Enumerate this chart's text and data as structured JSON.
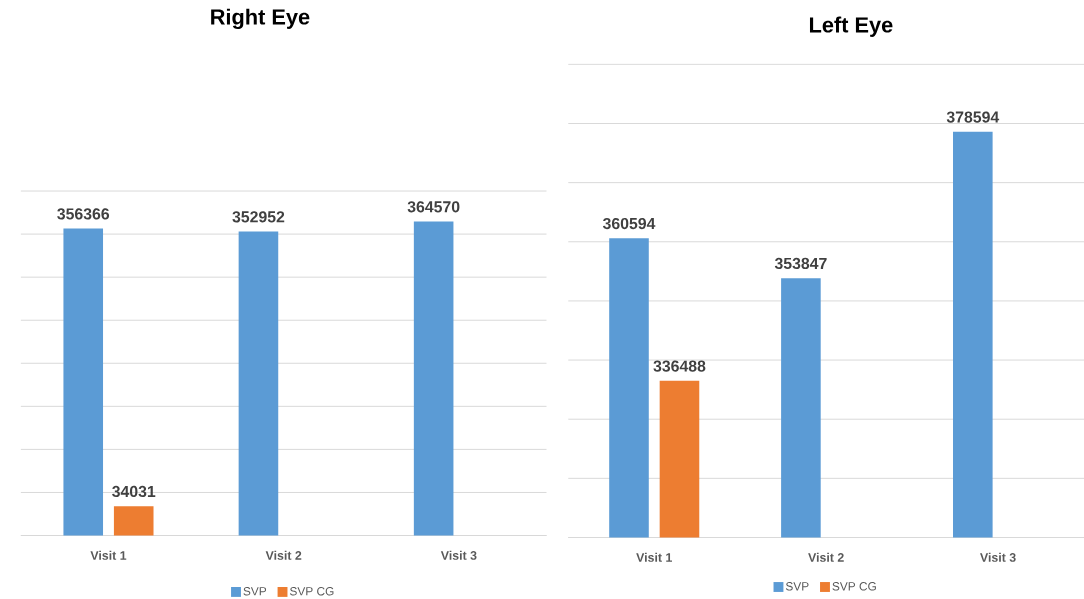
{
  "chart_data": [
    {
      "type": "bar",
      "title": "Right Eye",
      "categories": [
        "Visit 1",
        "Visit 2",
        "Visit 3"
      ],
      "series": [
        {
          "name": "SVP",
          "color": "#5b9bd5",
          "values": [
            356366,
            352952,
            364570
          ]
        },
        {
          "name": "SVP CG",
          "color": "#ed7d31",
          "values": [
            34031,
            null,
            null
          ]
        }
      ],
      "ylim": [
        0,
        400000
      ],
      "yticks": [
        {
          "value": 0,
          "label": null
        },
        {
          "value": 50000,
          "label": null
        },
        {
          "value": 100000,
          "label": null
        },
        {
          "value": 150000,
          "label": null
        },
        {
          "value": 200000,
          "label": null
        },
        {
          "value": 250000,
          "label": null
        },
        {
          "value": 300000,
          "label": null
        },
        {
          "value": 350000,
          "label": null
        },
        {
          "value": 400000,
          "label": null
        }
      ],
      "tick_labels": "x",
      "grid": "y",
      "legend": "bottom",
      "data_labels": true
    },
    {
      "type": "bar",
      "title": "Left Eye",
      "categories": [
        "Visit 1",
        "Visit 2",
        "Visit 3"
      ],
      "series": [
        {
          "name": "SVP",
          "color": "#5b9bd5",
          "values": [
            360594,
            353847,
            378594
          ]
        },
        {
          "name": "SVP CG",
          "color": "#ed7d31",
          "values": [
            336488,
            null,
            null
          ]
        }
      ],
      "ylim": [
        310000,
        390000
      ],
      "yticks": [
        {
          "value": 310000,
          "label": null
        },
        {
          "value": 320000,
          "label": null
        },
        {
          "value": 330000,
          "label": null
        },
        {
          "value": 340000,
          "label": null
        },
        {
          "value": 350000,
          "label": null
        },
        {
          "value": 360000,
          "label": null
        },
        {
          "value": 370000,
          "label": null
        },
        {
          "value": 380000,
          "label": null
        },
        {
          "value": 390000,
          "label": null
        }
      ],
      "tick_labels": "x",
      "grid": "y",
      "legend": "bottom",
      "data_labels": true
    }
  ]
}
